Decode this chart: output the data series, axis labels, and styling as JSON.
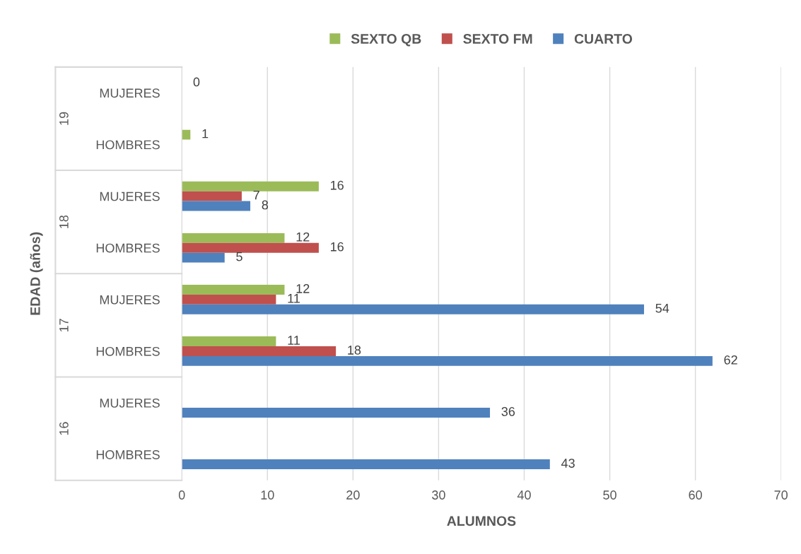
{
  "chart_data": {
    "type": "bar",
    "orientation": "horizontal",
    "xlabel": "ALUMNOS",
    "ylabel": "EDAD (años)",
    "categories": [
      "MUJERES",
      "HOMBRES",
      "MUJERES",
      "HOMBRES",
      "MUJERES",
      "HOMBRES",
      "MUJERES",
      "HOMBRES"
    ],
    "annotations": [
      "19",
      "18",
      "17",
      "16"
    ],
    "series": [
      {
        "name": "SEXTO QB",
        "color": "#9bbb59",
        "values": [
          0,
          1,
          16,
          12,
          12,
          11,
          null,
          null
        ]
      },
      {
        "name": "SEXTO FM",
        "color": "#c0504d",
        "values": [
          null,
          null,
          7,
          16,
          11,
          18,
          null,
          null
        ]
      },
      {
        "name": "CUARTO",
        "color": "#4f81bd",
        "values": [
          null,
          null,
          8,
          5,
          54,
          62,
          36,
          43
        ]
      }
    ],
    "xlim": [
      0,
      70
    ],
    "xticks": [
      0,
      10,
      20,
      30,
      40,
      50,
      60,
      70
    ],
    "grid": "x",
    "legend": "top",
    "data_labels": true
  }
}
